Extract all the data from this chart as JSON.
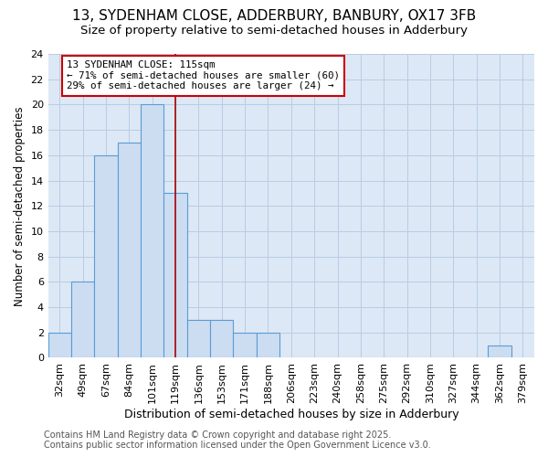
{
  "title": "13, SYDENHAM CLOSE, ADDERBURY, BANBURY, OX17 3FB",
  "subtitle": "Size of property relative to semi-detached houses in Adderbury",
  "xlabel": "Distribution of semi-detached houses by size in Adderbury",
  "ylabel": "Number of semi-detached properties",
  "categories": [
    "32sqm",
    "49sqm",
    "67sqm",
    "84sqm",
    "101sqm",
    "119sqm",
    "136sqm",
    "153sqm",
    "171sqm",
    "188sqm",
    "206sqm",
    "223sqm",
    "240sqm",
    "258sqm",
    "275sqm",
    "292sqm",
    "310sqm",
    "327sqm",
    "344sqm",
    "362sqm",
    "379sqm"
  ],
  "values": [
    2,
    6,
    16,
    17,
    20,
    13,
    3,
    3,
    2,
    2,
    0,
    0,
    0,
    0,
    0,
    0,
    0,
    0,
    0,
    1,
    0
  ],
  "bar_color": "#ccddf2",
  "bar_edge_color": "#5b9bd5",
  "annotation_text": "13 SYDENHAM CLOSE: 115sqm\n← 71% of semi-detached houses are smaller (60)\n29% of semi-detached houses are larger (24) →",
  "annotation_box_color": "#ffffff",
  "annotation_box_edge_color": "#cc0000",
  "vline_color": "#aa0000",
  "ylim": [
    0,
    24
  ],
  "yticks": [
    0,
    2,
    4,
    6,
    8,
    10,
    12,
    14,
    16,
    18,
    20,
    22,
    24
  ],
  "bg_color": "#ffffff",
  "plot_bg_color": "#dce8f5",
  "grid_color": "#b8cce4",
  "footer": "Contains HM Land Registry data © Crown copyright and database right 2025.\nContains public sector information licensed under the Open Government Licence v3.0.",
  "title_fontsize": 11,
  "subtitle_fontsize": 9.5,
  "xlabel_fontsize": 9,
  "ylabel_fontsize": 8.5,
  "tick_fontsize": 8,
  "footer_fontsize": 7,
  "vline_x": 5
}
